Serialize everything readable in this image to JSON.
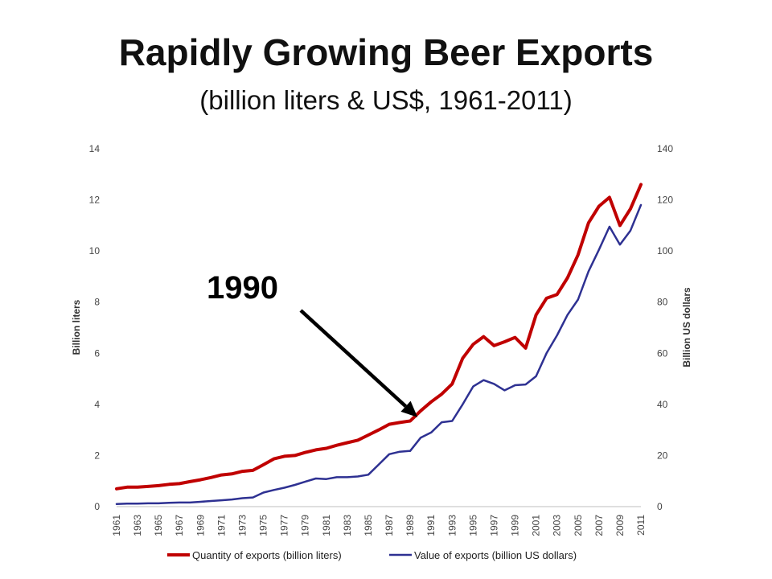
{
  "title": "Rapidly Growing Beer Exports",
  "subtitle": "(billion liters & US$,  1961-2011)",
  "chart_data": {
    "type": "line",
    "xlabel": "",
    "ylabel_left": "Billion liters",
    "ylabel_right": "Billion US dollars",
    "ylim_left": [
      0,
      14
    ],
    "ylim_right": [
      0,
      140
    ],
    "yticks_left": [
      0,
      2,
      4,
      6,
      8,
      10,
      12,
      14
    ],
    "yticks_right": [
      0,
      20,
      40,
      60,
      80,
      100,
      120,
      140
    ],
    "xlim": [
      1961,
      2011
    ],
    "xticks": [
      1961,
      1963,
      1965,
      1967,
      1969,
      1971,
      1973,
      1975,
      1977,
      1979,
      1981,
      1983,
      1985,
      1987,
      1989,
      1991,
      1993,
      1995,
      1997,
      1999,
      2001,
      2003,
      2005,
      2007,
      2009,
      2011
    ],
    "grid": false,
    "legend": "bottom",
    "x": [
      1961,
      1962,
      1963,
      1964,
      1965,
      1966,
      1967,
      1968,
      1969,
      1970,
      1971,
      1972,
      1973,
      1974,
      1975,
      1976,
      1977,
      1978,
      1979,
      1980,
      1981,
      1982,
      1983,
      1984,
      1985,
      1986,
      1987,
      1988,
      1989,
      1990,
      1991,
      1992,
      1993,
      1994,
      1995,
      1996,
      1997,
      1998,
      1999,
      2000,
      2001,
      2002,
      2003,
      2004,
      2005,
      2006,
      2007,
      2008,
      2009,
      2010,
      2011
    ],
    "series": [
      {
        "name": "Quantity of exports (billion liters)",
        "axis": "left",
        "color": "#c00000",
        "values": [
          0.7,
          0.76,
          0.76,
          0.79,
          0.82,
          0.87,
          0.9,
          0.98,
          1.05,
          1.14,
          1.24,
          1.28,
          1.38,
          1.42,
          1.64,
          1.87,
          1.97,
          2.0,
          2.12,
          2.22,
          2.28,
          2.4,
          2.5,
          2.6,
          2.8,
          3.0,
          3.22,
          3.29,
          3.35,
          3.75,
          4.1,
          4.4,
          4.8,
          5.8,
          6.35,
          6.65,
          6.3,
          6.45,
          6.62,
          6.2,
          7.5,
          8.15,
          8.3,
          8.95,
          9.85,
          11.1,
          11.75,
          12.1,
          11.0,
          11.65,
          12.6
        ]
      },
      {
        "name": "Value of exports (billion US dollars)",
        "axis": "right",
        "color": "#2e3192",
        "values": [
          1.0,
          1.2,
          1.2,
          1.3,
          1.3,
          1.5,
          1.6,
          1.6,
          1.9,
          2.2,
          2.5,
          2.8,
          3.3,
          3.6,
          5.5,
          6.5,
          7.4,
          8.5,
          9.8,
          11.0,
          10.8,
          11.5,
          11.5,
          11.8,
          12.5,
          16.5,
          20.5,
          21.5,
          21.8,
          27.0,
          29.0,
          33.0,
          33.5,
          40.0,
          47.0,
          49.5,
          48.0,
          45.5,
          47.5,
          47.8,
          51.0,
          60.0,
          67.0,
          75.0,
          81.0,
          92.0,
          100.5,
          109.5,
          102.5,
          108.0,
          118.0
        ]
      }
    ],
    "annotations": [
      {
        "text": "1990",
        "points_to_x": 1989.7,
        "points_to_y_left": 3.5
      }
    ]
  }
}
